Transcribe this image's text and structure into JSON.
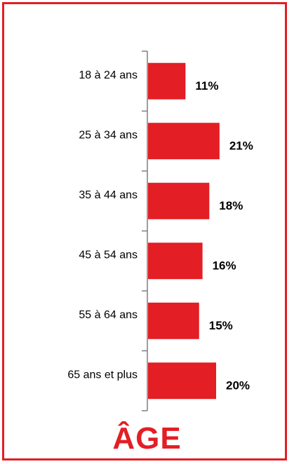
{
  "chart_data": {
    "type": "bar",
    "orientation": "horizontal",
    "title": "ÂGE",
    "categories": [
      "18 à 24 ans",
      "25 à 34 ans",
      "35 à 44 ans",
      "45 à 54 ans",
      "55 à 64 ans",
      "65 ans et plus"
    ],
    "values": [
      11,
      21,
      18,
      16,
      15,
      20
    ],
    "data_labels": [
      "11%",
      "21%",
      "18%",
      "16%",
      "15%",
      "20%"
    ],
    "unit": "%",
    "xlim": [
      0,
      25
    ],
    "grid": false,
    "legend": "none",
    "bar_color": "#e31e24",
    "frame_color": "#e31e24",
    "title_color": "#e31e24"
  }
}
